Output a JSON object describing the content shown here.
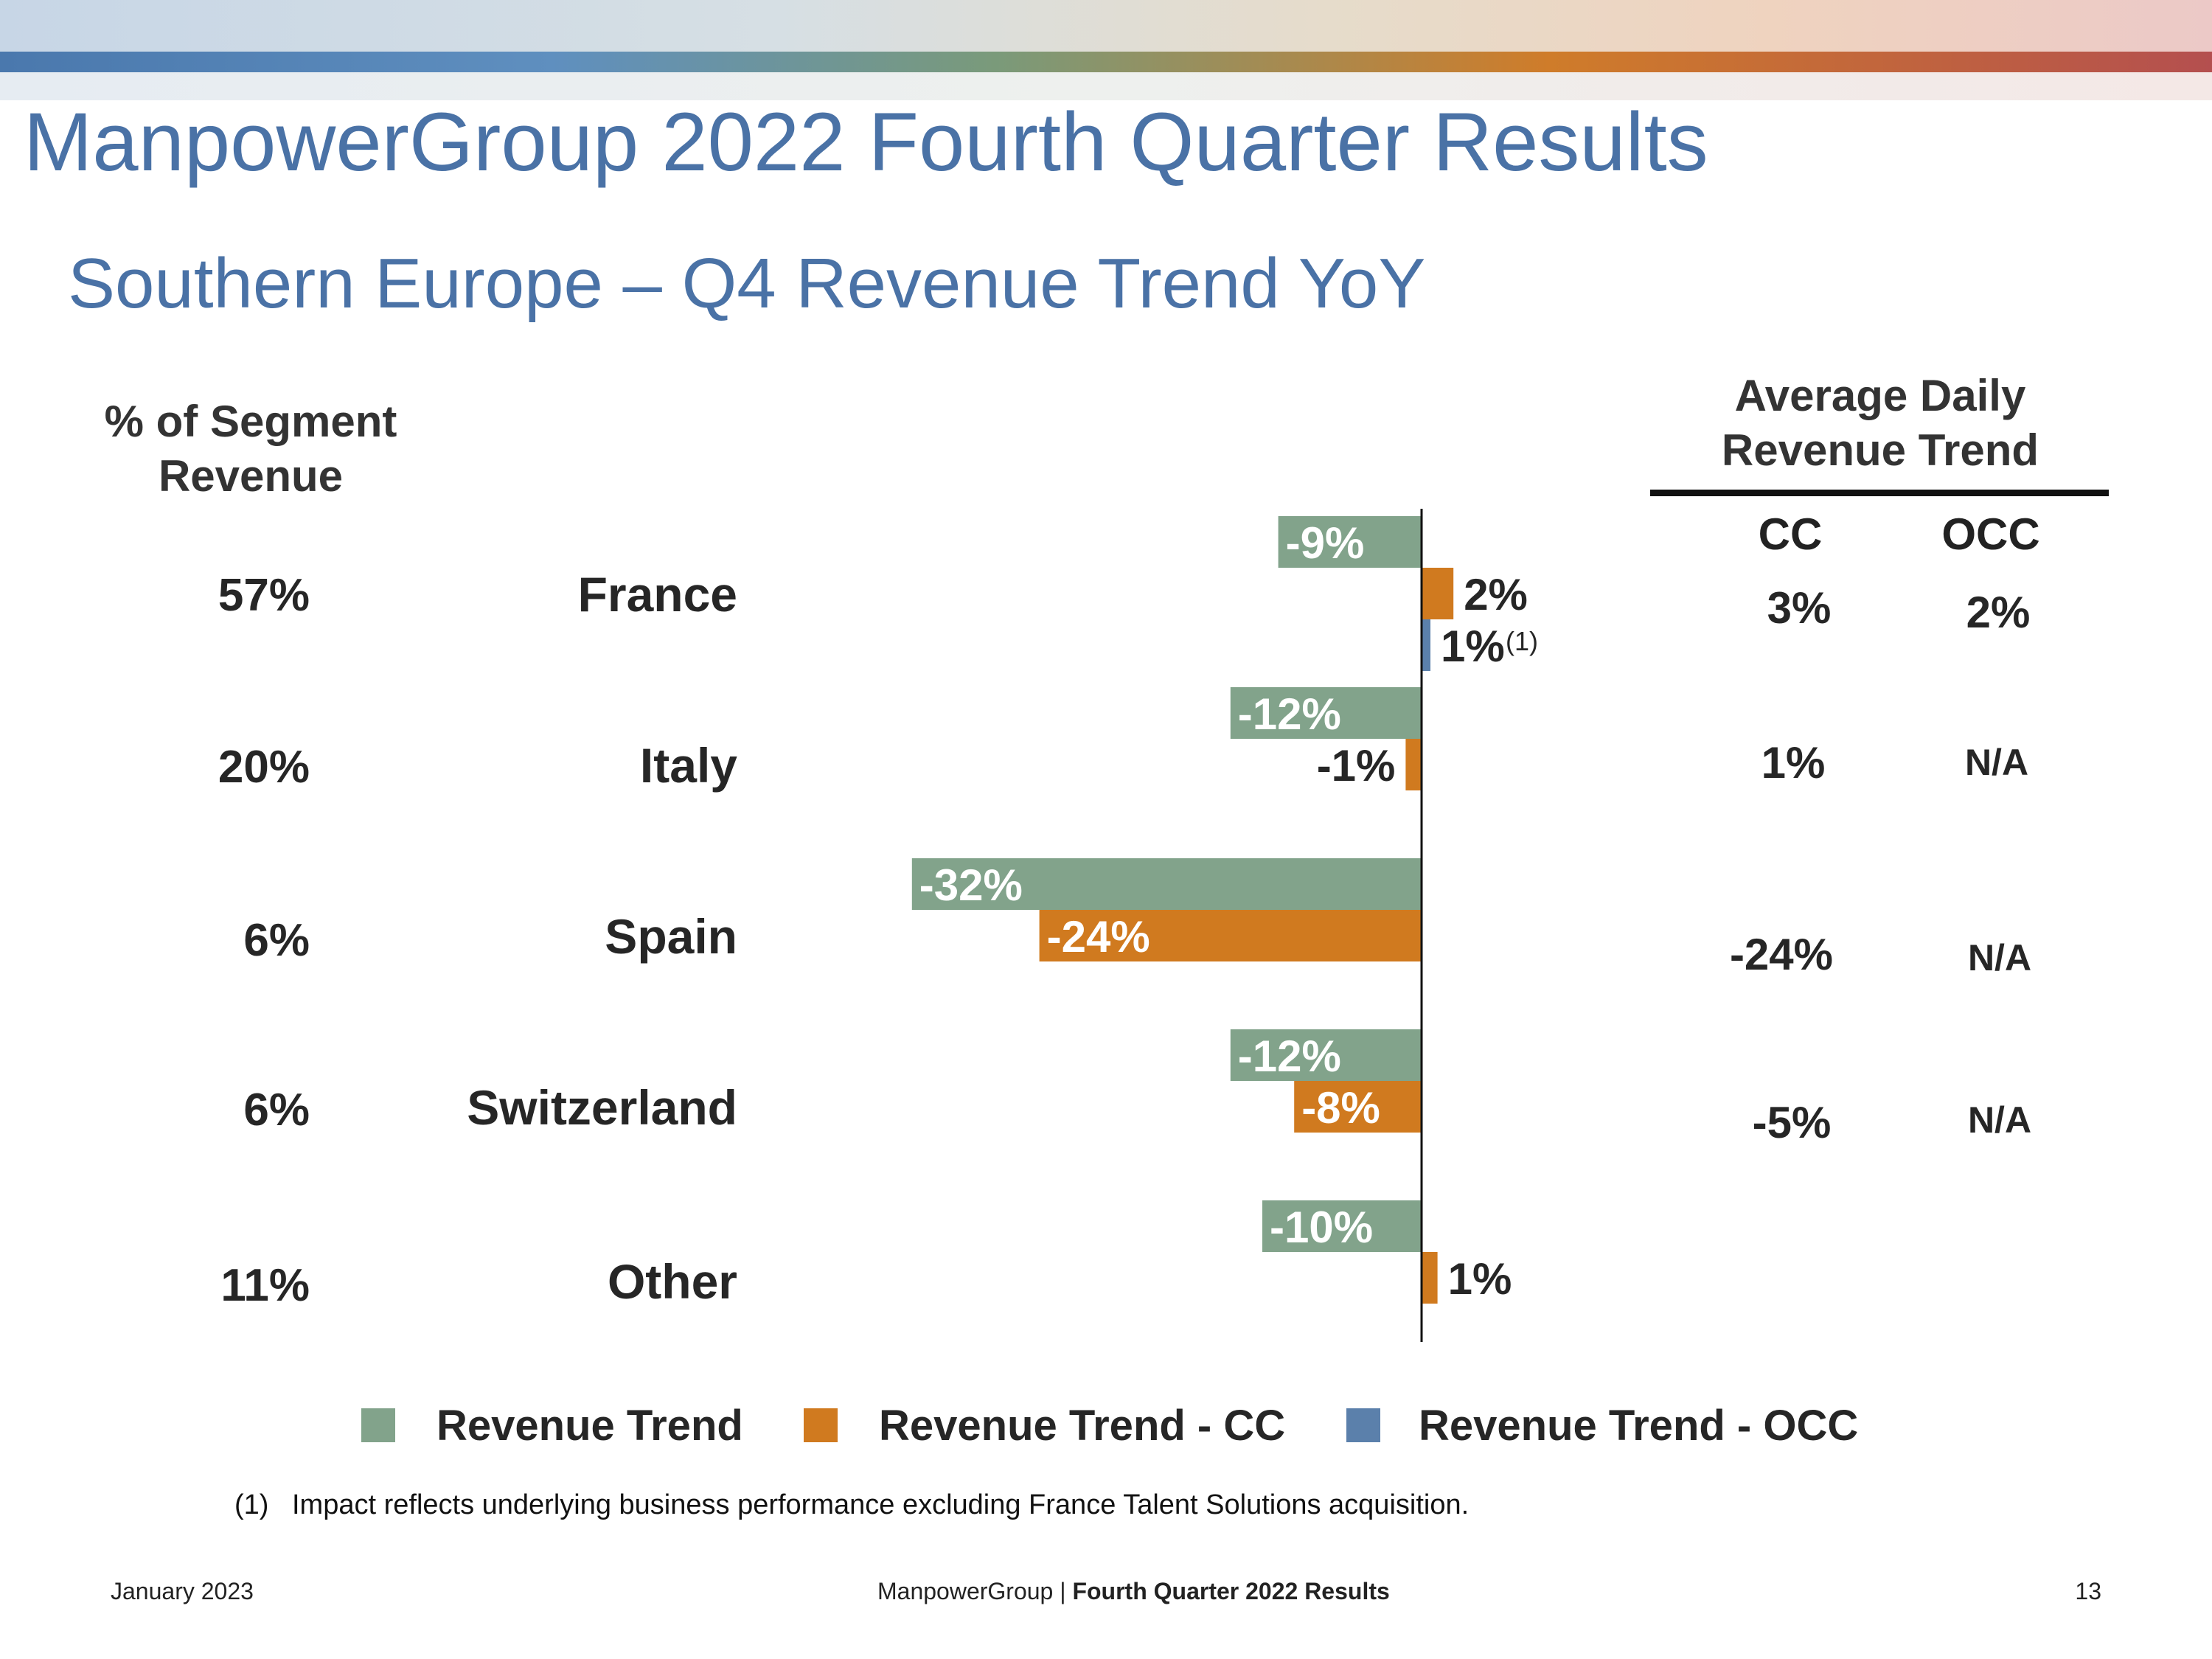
{
  "header": {
    "title": "ManpowerGroup 2022 Fourth Quarter Results",
    "subtitle": "Southern Europe – Q4 Revenue Trend YoY"
  },
  "segment_revenue_header": [
    "% of Segment",
    "Revenue"
  ],
  "adr_header": [
    "Average Daily",
    "Revenue Trend"
  ],
  "adr_columns": {
    "cc": "CC",
    "occ": "OCC"
  },
  "rows": [
    {
      "pct": "57%",
      "country": "France",
      "adr_cc": "3%",
      "adr_occ": "2%"
    },
    {
      "pct": "20%",
      "country": "Italy",
      "adr_cc": "1%",
      "adr_occ": "N/A"
    },
    {
      "pct": "6%",
      "country": "Spain",
      "adr_cc": "-24%",
      "adr_occ": "N/A"
    },
    {
      "pct": "6%",
      "country": "Switzerland",
      "adr_cc": "-5%",
      "adr_occ": "N/A"
    },
    {
      "pct": "11%",
      "country": "Other",
      "adr_cc": "",
      "adr_occ": ""
    }
  ],
  "chart_data": {
    "type": "bar",
    "orientation": "horizontal",
    "categories": [
      "France",
      "Italy",
      "Spain",
      "Switzerland",
      "Other"
    ],
    "series": [
      {
        "name": "Revenue Trend",
        "color": "#82a38b",
        "values": [
          -9,
          -12,
          -32,
          -12,
          -10
        ],
        "labels": [
          "-9%",
          "-12%",
          "-32%",
          "-12%",
          "-10%"
        ]
      },
      {
        "name": "Revenue Trend - CC",
        "color": "#d07a1f",
        "values": [
          2,
          -1,
          -24,
          -8,
          1
        ],
        "labels": [
          "2%",
          "-1%",
          "-24%",
          "-8%",
          "1%"
        ]
      },
      {
        "name": "Revenue Trend - OCC",
        "color": "#5b80ab",
        "values": [
          1,
          null,
          null,
          null,
          null
        ],
        "labels": [
          "1%",
          "",
          "",
          "",
          ""
        ]
      }
    ],
    "annotations": [
      {
        "category": "France",
        "series": "Revenue Trend - OCC",
        "text": "(1)"
      }
    ]
  },
  "legend": [
    {
      "label": "Revenue Trend",
      "color": "#82a38b"
    },
    {
      "label": "Revenue Trend - CC",
      "color": "#d07a1f"
    },
    {
      "label": "Revenue Trend - OCC",
      "color": "#5b80ab"
    }
  ],
  "footnote": {
    "number": "(1)",
    "text": "Impact reflects underlying business performance excluding France Talent Solutions acquisition."
  },
  "footer": {
    "date": "January 2023",
    "company": "ManpowerGroup",
    "separator": " | ",
    "report": "Fourth Quarter 2022 Results",
    "page": "13"
  }
}
